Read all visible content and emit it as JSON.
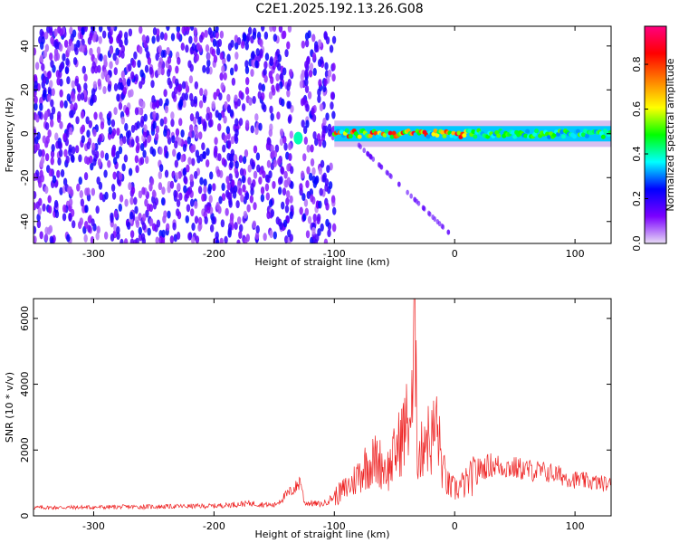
{
  "title": "C2E1.2025.192.13.26.G08",
  "chart_data": [
    {
      "type": "heatmap",
      "title": "C2E1.2025.192.13.26.G08",
      "xlabel": "Height of straight line (km)",
      "ylabel": "Frequency (Hz)",
      "xlim": [
        -350,
        130
      ],
      "ylim": [
        -50,
        49
      ],
      "xticks": [
        -300,
        -200,
        -100,
        0,
        100
      ],
      "yticks": [
        -40,
        -20,
        0,
        20,
        40
      ],
      "colorbar": {
        "label": "Normalized spectral amplitude",
        "range": [
          0,
          0.97
        ],
        "ticks": [
          0.0,
          0.2,
          0.4,
          0.6,
          0.8
        ],
        "colors": [
          "#e8dcf5",
          "#7b00ff",
          "#0000ff",
          "#00ffff",
          "#00ff00",
          "#ffff00",
          "#ff8000",
          "#ff0000",
          "#ff0080"
        ]
      },
      "regions": [
        {
          "name": "noise",
          "x_range": [
            -350,
            -100
          ],
          "f_range": [
            -50,
            49
          ],
          "amplitude": [
            0.05,
            0.25
          ]
        },
        {
          "name": "signal-band",
          "x_range": [
            -100,
            130
          ],
          "f_center": 0,
          "f_halfwidth": 3,
          "amplitude": [
            0.3,
            0.9
          ]
        },
        {
          "name": "spot",
          "x": -130,
          "f": -2,
          "amplitude": 0.4
        },
        {
          "name": "tail",
          "x_range": [
            -80,
            -5
          ],
          "f_range": [
            -5,
            -45
          ],
          "amplitude": [
            0.05,
            0.2
          ]
        }
      ]
    },
    {
      "type": "line",
      "xlabel": "Height of straight line (km)",
      "ylabel": "SNR (10 * v/v)",
      "xlim": [
        -350,
        130
      ],
      "ylim": [
        0,
        6600
      ],
      "xticks": [
        -300,
        -200,
        -100,
        0,
        100
      ],
      "yticks": [
        0,
        2000,
        4000,
        6000
      ],
      "color": "#ee2222",
      "series": [
        {
          "x": [
            -350,
            -300,
            -250,
            -200,
            -170,
            -150,
            -131,
            -128,
            -125,
            -110,
            -95,
            -85,
            -75,
            -65,
            -55,
            -45,
            -40,
            -35,
            -33,
            -32,
            -31,
            -28,
            -25,
            -20,
            -15,
            -10,
            -5,
            0,
            10,
            20,
            30,
            40,
            50,
            60,
            70,
            80,
            90,
            100,
            110,
            120,
            130
          ],
          "y": [
            250,
            260,
            280,
            300,
            380,
            320,
            900,
            1100,
            400,
            350,
            700,
            1000,
            1500,
            1700,
            1400,
            2300,
            2800,
            3200,
            6500,
            5200,
            2000,
            1800,
            2600,
            2200,
            2800,
            1400,
            900,
            800,
            1000,
            1400,
            1550,
            1500,
            1450,
            1400,
            1350,
            1300,
            1200,
            1100,
            1050,
            1000,
            950
          ]
        }
      ]
    }
  ]
}
